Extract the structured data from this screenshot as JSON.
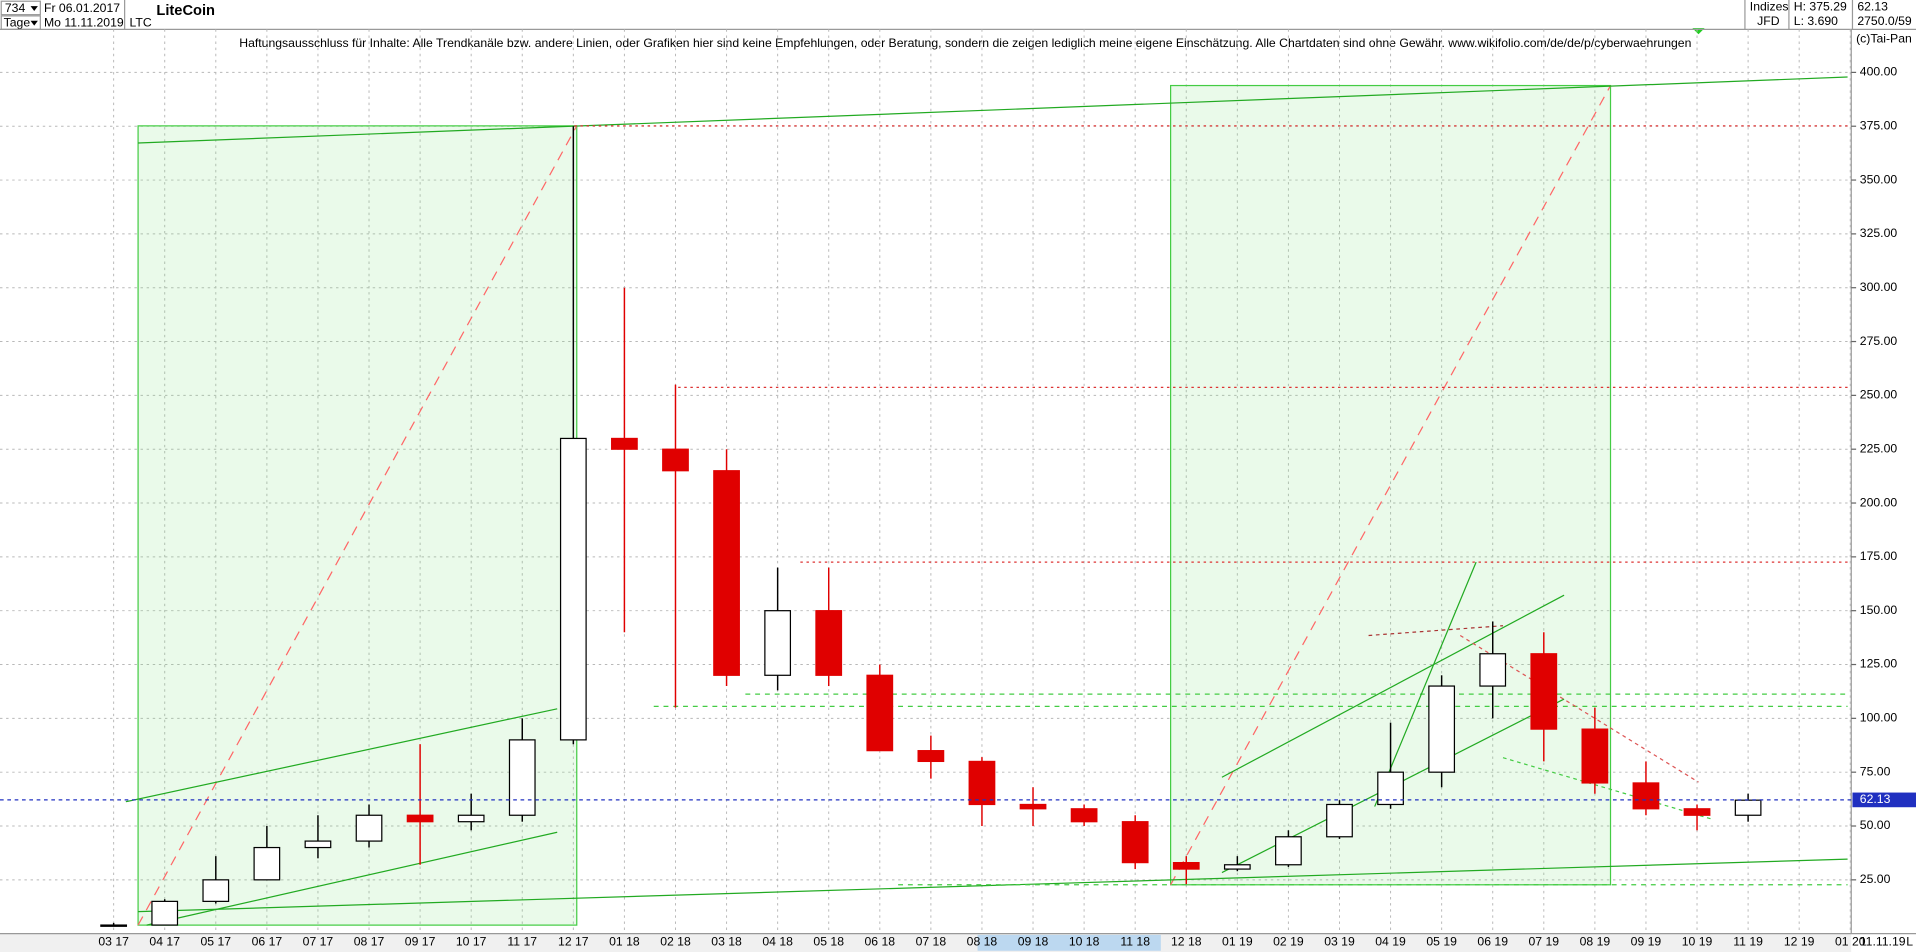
{
  "header": {
    "count": "734",
    "start_date": "Fr 06.01.2017",
    "period": "Tage",
    "end_date": "Mo 11.11.2019",
    "symbol": "LTC",
    "group": "Indizes",
    "source": "JFD",
    "high_label": "H: 375.29",
    "low_label": "L: 3.690",
    "info": "2750.0/59",
    "copyright": "(c)Tai-Pan",
    "date_marker": "11.11.19",
    "scale_mode": "L"
  },
  "chart_data": {
    "type": "candlestick",
    "title": "LiteCoin",
    "subtitle": "Haftungsausschluss für Inhalte: Alle Trendkanäle bzw. andere Linien, oder Grafiken hier sind keine Empfehlungen, oder Beratung, sondern die zeigen lediglich meine eigene Einschätzung. Alle Chartdaten sind ohne Gewähr.  www.wikifolio.com/de/de/p/cyberwaehrungen",
    "categories": [
      "03 17",
      "04 17",
      "05 17",
      "06 17",
      "07 17",
      "08 17",
      "09 17",
      "10 17",
      "11 17",
      "12 17",
      "01 18",
      "02 18",
      "03 18",
      "04 18",
      "05 18",
      "06 18",
      "07 18",
      "08 18",
      "09 18",
      "10 18",
      "11 18",
      "12 18",
      "01 19",
      "02 19",
      "03 19",
      "04 19",
      "05 19",
      "06 19",
      "07 19",
      "08 19",
      "09 19",
      "10 19",
      "11 19",
      "12 19",
      "01 20"
    ],
    "open": [
      4,
      4,
      15,
      25,
      40,
      43,
      55,
      52,
      55,
      90,
      230,
      225,
      215,
      120,
      150,
      120,
      85,
      80,
      60,
      58,
      52,
      33,
      30,
      32,
      45,
      60,
      75,
      115,
      130,
      95,
      70,
      58,
      55,
      null,
      null
    ],
    "high": [
      5,
      16,
      36,
      50,
      55,
      60,
      88,
      65,
      100,
      375,
      300,
      255,
      225,
      170,
      170,
      125,
      92,
      82,
      68,
      60,
      55,
      36,
      36,
      48,
      62,
      98,
      120,
      145,
      140,
      105,
      80,
      60,
      65,
      null,
      null
    ],
    "low": [
      3.7,
      4,
      14,
      25,
      35,
      40,
      32,
      48,
      52,
      88,
      140,
      105,
      115,
      113,
      115,
      85,
      72,
      50,
      50,
      50,
      30,
      23,
      29,
      31,
      44,
      58,
      68,
      100,
      80,
      65,
      55,
      48,
      52,
      null,
      null
    ],
    "close": [
      4,
      15,
      25,
      40,
      43,
      55,
      52,
      55,
      90,
      230,
      225,
      215,
      120,
      150,
      120,
      85,
      80,
      60,
      58,
      52,
      33,
      30,
      32,
      45,
      60,
      75,
      115,
      130,
      95,
      70,
      58,
      55,
      62,
      null,
      null
    ],
    "up_color": "#000000",
    "down_color": "#e00000",
    "current_price": 62.13,
    "current_price_color": "#2030c0",
    "ylim": [
      0,
      420
    ],
    "yticks": [
      {
        "value": 25,
        "label": "25.00"
      },
      {
        "value": 50,
        "label": "50.00"
      },
      {
        "value": 75,
        "label": "75.00"
      },
      {
        "value": 100,
        "label": "100.00"
      },
      {
        "value": 125,
        "label": "125.00"
      },
      {
        "value": 150,
        "label": "150.00"
      },
      {
        "value": 175,
        "label": "175.00"
      },
      {
        "value": 200,
        "label": "200.00"
      },
      {
        "value": 225,
        "label": "225.00"
      },
      {
        "value": 250,
        "label": "250.00"
      },
      {
        "value": 275,
        "label": "275.00"
      },
      {
        "value": 300,
        "label": "300.00"
      },
      {
        "value": 325,
        "label": "325.00"
      },
      {
        "value": 350,
        "label": "350.00"
      },
      {
        "value": 375,
        "label": "375.00"
      },
      {
        "value": 400,
        "label": "400.00"
      }
    ],
    "grid": true
  }
}
